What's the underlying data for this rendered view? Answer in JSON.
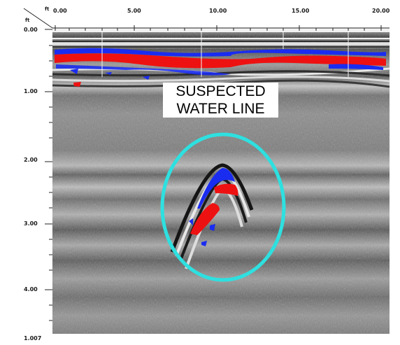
{
  "axis": {
    "corner_unit_top": "ft",
    "corner_unit_left": "ft",
    "x_ticks": [
      "0.00",
      "5.00",
      "10.00",
      "15.00",
      "20.00"
    ],
    "y_ticks": [
      "0.00",
      "1.00",
      "2.00",
      "3.00",
      "4.00"
    ],
    "bottom_label": "1.007"
  },
  "annotation": {
    "line1": "SUSPECTED",
    "line2": "WATER LINE",
    "circle_color": "#2ee0e0"
  },
  "colors": {
    "positive_reflection": "#ee1111",
    "negative_reflection": "#1a2cf0",
    "background": "#8c8c8c"
  }
}
